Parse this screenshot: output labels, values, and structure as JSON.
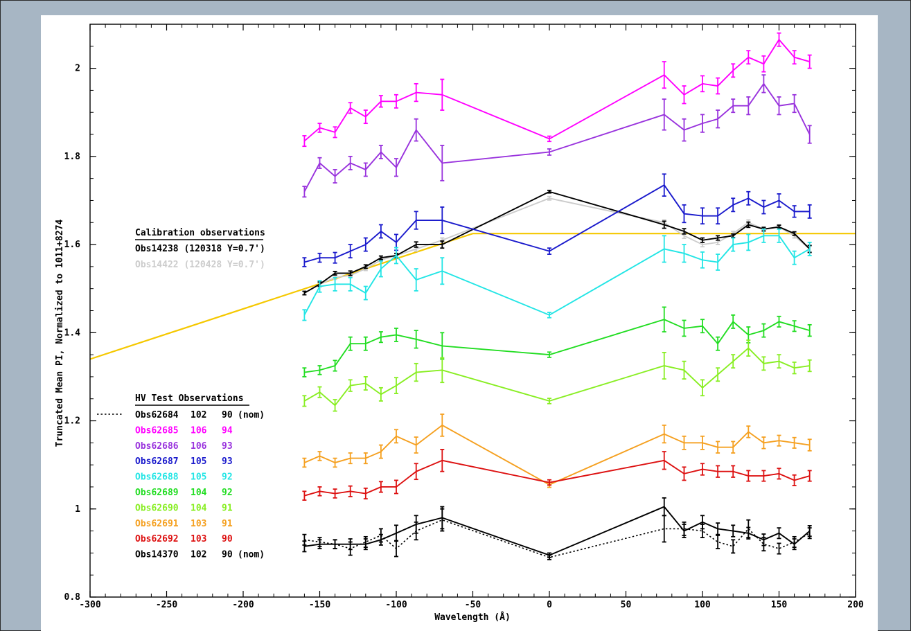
{
  "chart_data": {
    "type": "line",
    "title": "",
    "xlabel": "Wavelength (Å)",
    "ylabel": "Truncated Mean PI, Normalized to 1011+8274",
    "xlim": [
      -300,
      200
    ],
    "ylim": [
      0.8,
      2.1
    ],
    "x_ticks": [
      -300,
      -250,
      -200,
      -150,
      -100,
      -50,
      0,
      50,
      100,
      150,
      200
    ],
    "y_ticks": [
      0.8,
      1,
      1.2,
      1.4,
      1.6,
      1.8,
      2
    ],
    "y_tick_labels": [
      "0.8",
      "1",
      "1.2",
      "1.4",
      "1.6",
      "1.8",
      "2"
    ],
    "grid": false,
    "x": [
      -160,
      -150,
      -140,
      -130,
      -120,
      -110,
      -100,
      -87,
      -70,
      0,
      75,
      88,
      100,
      110,
      120,
      130,
      140,
      150,
      160,
      170
    ],
    "fit_line": {
      "color": "#f5c800",
      "x": [
        -300,
        -50,
        200
      ],
      "y": [
        1.34,
        1.625,
        1.625
      ]
    },
    "calibration_legend": {
      "heading": "Calibration observations",
      "items": [
        {
          "label": "Obs14238 (120318 Y=0.7')",
          "color": "#000000"
        },
        {
          "label": "Obs14422 (120428 Y=0.7')",
          "color": "#cccccc"
        }
      ]
    },
    "hv_legend": {
      "heading": "HV Test Observations",
      "line_sample": "dotted",
      "items": [
        {
          "obs": "Obs62684",
          "a": "102",
          "b": "90",
          "nom": "(nom)",
          "color": "#000000"
        },
        {
          "obs": "Obs62685",
          "a": "106",
          "b": "94",
          "nom": "",
          "color": "#ff00ff"
        },
        {
          "obs": "Obs62686",
          "a": "106",
          "b": "93",
          "nom": "",
          "color": "#9933dd"
        },
        {
          "obs": "Obs62687",
          "a": "105",
          "b": "93",
          "nom": "",
          "color": "#1a1acc"
        },
        {
          "obs": "Obs62688",
          "a": "105",
          "b": "92",
          "nom": "",
          "color": "#22e5e5"
        },
        {
          "obs": "Obs62689",
          "a": "104",
          "b": "92",
          "nom": "",
          "color": "#22dd22"
        },
        {
          "obs": "Obs62690",
          "a": "104",
          "b": "91",
          "nom": "",
          "color": "#88ee22"
        },
        {
          "obs": "Obs62691",
          "a": "103",
          "b": "91",
          "nom": "",
          "color": "#f5a020"
        },
        {
          "obs": "Obs62692",
          "a": "103",
          "b": "90",
          "nom": "",
          "color": "#dd1111"
        },
        {
          "obs": "Obs14370",
          "a": "102",
          "b": "90",
          "nom": "(nom)",
          "color": "#000000"
        }
      ]
    },
    "series": [
      {
        "name": "Obs14422 (120428 Y=0.7')",
        "color": "#cccccc",
        "dash": false,
        "x": [
          -160,
          -150,
          -140,
          -130,
          -120,
          -110,
          -100,
          -87,
          -70,
          0,
          75,
          88,
          100,
          110,
          120,
          130,
          140,
          150,
          160,
          170
        ],
        "y": [
          1.49,
          1.51,
          1.525,
          1.53,
          1.545,
          1.565,
          1.575,
          1.59,
          1.61,
          1.705,
          1.65,
          1.62,
          1.6,
          1.605,
          1.625,
          1.65,
          1.635,
          1.64,
          1.62,
          1.59
        ],
        "err": [
          0.004,
          0.004,
          0.004,
          0.004,
          0.004,
          0.004,
          0.004,
          0.005,
          0.005,
          0.004,
          0.006,
          0.006,
          0.005,
          0.005,
          0.005,
          0.006,
          0.005,
          0.005,
          0.005,
          0.006
        ]
      },
      {
        "name": "Obs14238 (120318 Y=0.7')",
        "color": "#000000",
        "dash": false,
        "x": [
          -160,
          -150,
          -140,
          -130,
          -120,
          -110,
          -100,
          -87,
          -70,
          0,
          75,
          88,
          100,
          110,
          120,
          130,
          140,
          150,
          160,
          170
        ],
        "y": [
          1.49,
          1.51,
          1.535,
          1.535,
          1.55,
          1.57,
          1.575,
          1.6,
          1.6,
          1.72,
          1.645,
          1.63,
          1.61,
          1.615,
          1.62,
          1.645,
          1.635,
          1.64,
          1.625,
          1.59
        ],
        "err": [
          0.004,
          0.005,
          0.004,
          0.005,
          0.004,
          0.004,
          0.005,
          0.006,
          0.008,
          0.003,
          0.008,
          0.006,
          0.005,
          0.005,
          0.004,
          0.006,
          0.004,
          0.004,
          0.004,
          0.008
        ]
      },
      {
        "name": "Obs62685",
        "color": "#ff00ff",
        "dash": false,
        "x": [
          -160,
          -150,
          -140,
          -130,
          -120,
          -110,
          -100,
          -87,
          -70,
          0,
          75,
          88,
          100,
          110,
          120,
          130,
          140,
          150,
          160,
          170
        ],
        "y": [
          1.835,
          1.865,
          1.855,
          1.91,
          1.89,
          1.925,
          1.925,
          1.945,
          1.94,
          1.84,
          1.985,
          1.94,
          1.965,
          1.96,
          1.995,
          2.025,
          2.01,
          2.065,
          2.025,
          2.015
        ],
        "err": [
          0.012,
          0.01,
          0.012,
          0.012,
          0.015,
          0.013,
          0.015,
          0.02,
          0.035,
          0.006,
          0.03,
          0.02,
          0.018,
          0.018,
          0.015,
          0.015,
          0.018,
          0.015,
          0.015,
          0.015
        ]
      },
      {
        "name": "Obs62686",
        "color": "#9933dd",
        "dash": false,
        "x": [
          -160,
          -150,
          -140,
          -130,
          -120,
          -110,
          -100,
          -87,
          -70,
          0,
          75,
          88,
          100,
          110,
          120,
          130,
          140,
          150,
          160,
          170
        ],
        "y": [
          1.72,
          1.785,
          1.755,
          1.785,
          1.77,
          1.81,
          1.775,
          1.86,
          1.785,
          1.81,
          1.895,
          1.86,
          1.875,
          1.885,
          1.915,
          1.915,
          1.965,
          1.915,
          1.92,
          1.85
        ],
        "err": [
          0.012,
          0.012,
          0.015,
          0.015,
          0.015,
          0.015,
          0.02,
          0.025,
          0.04,
          0.007,
          0.035,
          0.025,
          0.02,
          0.02,
          0.015,
          0.02,
          0.02,
          0.02,
          0.02,
          0.02
        ]
      },
      {
        "name": "Obs62687",
        "color": "#1a1acc",
        "dash": false,
        "x": [
          -160,
          -150,
          -140,
          -130,
          -120,
          -110,
          -100,
          -87,
          -70,
          0,
          75,
          88,
          100,
          110,
          120,
          130,
          140,
          150,
          160,
          170
        ],
        "y": [
          1.56,
          1.57,
          1.57,
          1.585,
          1.6,
          1.63,
          1.605,
          1.655,
          1.655,
          1.585,
          1.735,
          1.67,
          1.665,
          1.665,
          1.69,
          1.705,
          1.685,
          1.7,
          1.675,
          1.675
        ],
        "err": [
          0.01,
          0.01,
          0.012,
          0.015,
          0.015,
          0.015,
          0.018,
          0.02,
          0.03,
          0.007,
          0.025,
          0.02,
          0.018,
          0.018,
          0.015,
          0.015,
          0.015,
          0.015,
          0.013,
          0.015
        ]
      },
      {
        "name": "Obs62688",
        "color": "#22e5e5",
        "dash": false,
        "x": [
          -160,
          -150,
          -140,
          -130,
          -120,
          -110,
          -100,
          -87,
          -70,
          0,
          75,
          88,
          100,
          110,
          120,
          130,
          140,
          150,
          160,
          170
        ],
        "y": [
          1.44,
          1.505,
          1.51,
          1.51,
          1.49,
          1.545,
          1.575,
          1.52,
          1.54,
          1.44,
          1.59,
          1.58,
          1.565,
          1.56,
          1.6,
          1.605,
          1.62,
          1.62,
          1.57,
          1.59
        ],
        "err": [
          0.012,
          0.013,
          0.015,
          0.015,
          0.015,
          0.018,
          0.018,
          0.025,
          0.03,
          0.006,
          0.03,
          0.02,
          0.018,
          0.018,
          0.015,
          0.018,
          0.015,
          0.015,
          0.015,
          0.015
        ]
      },
      {
        "name": "Obs62689",
        "color": "#22dd22",
        "dash": false,
        "x": [
          -160,
          -150,
          -140,
          -130,
          -120,
          -110,
          -100,
          -87,
          -70,
          0,
          75,
          88,
          100,
          110,
          120,
          130,
          140,
          150,
          160,
          170
        ],
        "y": [
          1.31,
          1.315,
          1.325,
          1.375,
          1.375,
          1.39,
          1.395,
          1.385,
          1.37,
          1.35,
          1.43,
          1.41,
          1.415,
          1.375,
          1.425,
          1.395,
          1.405,
          1.425,
          1.415,
          1.405
        ],
        "err": [
          0.01,
          0.01,
          0.012,
          0.015,
          0.015,
          0.012,
          0.015,
          0.02,
          0.03,
          0.006,
          0.028,
          0.018,
          0.015,
          0.015,
          0.015,
          0.018,
          0.015,
          0.012,
          0.012,
          0.013
        ]
      },
      {
        "name": "Obs62690",
        "color": "#88ee22",
        "dash": false,
        "x": [
          -160,
          -150,
          -140,
          -130,
          -120,
          -110,
          -100,
          -87,
          -70,
          0,
          75,
          88,
          100,
          110,
          120,
          130,
          140,
          150,
          160,
          170
        ],
        "y": [
          1.245,
          1.265,
          1.235,
          1.28,
          1.285,
          1.26,
          1.28,
          1.31,
          1.315,
          1.245,
          1.325,
          1.315,
          1.275,
          1.305,
          1.335,
          1.365,
          1.33,
          1.335,
          1.32,
          1.325
        ],
        "err": [
          0.012,
          0.012,
          0.013,
          0.013,
          0.015,
          0.015,
          0.018,
          0.02,
          0.028,
          0.006,
          0.03,
          0.02,
          0.018,
          0.015,
          0.015,
          0.018,
          0.015,
          0.015,
          0.013,
          0.013
        ]
      },
      {
        "name": "Obs62691",
        "color": "#f5a020",
        "dash": false,
        "x": [
          -160,
          -150,
          -140,
          -130,
          -120,
          -110,
          -100,
          -87,
          -70,
          0,
          75,
          88,
          100,
          110,
          120,
          130,
          140,
          150,
          160,
          170
        ],
        "y": [
          1.105,
          1.12,
          1.105,
          1.115,
          1.115,
          1.13,
          1.165,
          1.145,
          1.19,
          1.055,
          1.17,
          1.15,
          1.15,
          1.14,
          1.14,
          1.175,
          1.15,
          1.155,
          1.15,
          1.145
        ],
        "err": [
          0.01,
          0.01,
          0.01,
          0.012,
          0.012,
          0.015,
          0.015,
          0.018,
          0.025,
          0.006,
          0.02,
          0.015,
          0.015,
          0.013,
          0.013,
          0.013,
          0.013,
          0.012,
          0.012,
          0.013
        ]
      },
      {
        "name": "Obs62692",
        "color": "#dd1111",
        "dash": false,
        "x": [
          -160,
          -150,
          -140,
          -130,
          -120,
          -110,
          -100,
          -87,
          -70,
          0,
          75,
          88,
          100,
          110,
          120,
          130,
          140,
          150,
          160,
          170
        ],
        "y": [
          1.03,
          1.04,
          1.035,
          1.04,
          1.035,
          1.05,
          1.05,
          1.085,
          1.11,
          1.06,
          1.11,
          1.08,
          1.09,
          1.085,
          1.085,
          1.075,
          1.075,
          1.08,
          1.065,
          1.075
        ],
        "err": [
          0.01,
          0.01,
          0.01,
          0.012,
          0.012,
          0.012,
          0.015,
          0.018,
          0.025,
          0.006,
          0.02,
          0.015,
          0.013,
          0.013,
          0.013,
          0.012,
          0.012,
          0.012,
          0.012,
          0.012
        ]
      },
      {
        "name": "Obs62684",
        "color": "#000000",
        "dash": true,
        "x": [
          -160,
          -150,
          -140,
          -130,
          -120,
          -110,
          -100,
          -87,
          -70,
          0,
          75,
          88,
          100,
          110,
          120,
          130,
          140,
          150,
          160,
          170
        ],
        "y": [
          0.93,
          0.925,
          0.92,
          0.91,
          0.925,
          0.94,
          0.91,
          0.95,
          0.975,
          0.89,
          0.955,
          0.955,
          0.95,
          0.925,
          0.915,
          0.955,
          0.92,
          0.91,
          0.925,
          0.945
        ],
        "err": [
          0.012,
          0.01,
          0.01,
          0.015,
          0.012,
          0.015,
          0.018,
          0.02,
          0.025,
          0.005,
          0.03,
          0.015,
          0.015,
          0.015,
          0.015,
          0.02,
          0.015,
          0.012,
          0.012,
          0.012
        ]
      },
      {
        "name": "Obs14370",
        "color": "#000000",
        "dash": false,
        "x": [
          -160,
          -150,
          -140,
          -130,
          -120,
          -110,
          -100,
          -87,
          -70,
          0,
          75,
          88,
          100,
          110,
          120,
          130,
          140,
          150,
          160,
          170
        ],
        "y": [
          0.915,
          0.92,
          0.92,
          0.92,
          0.92,
          0.93,
          0.945,
          0.965,
          0.98,
          0.895,
          1.005,
          0.95,
          0.97,
          0.955,
          0.95,
          0.945,
          0.93,
          0.945,
          0.92,
          0.95
        ],
        "err": [
          0.012,
          0.01,
          0.01,
          0.012,
          0.012,
          0.012,
          0.018,
          0.02,
          0.025,
          0.005,
          0.02,
          0.015,
          0.015,
          0.013,
          0.013,
          0.013,
          0.013,
          0.012,
          0.012,
          0.012
        ]
      }
    ]
  }
}
